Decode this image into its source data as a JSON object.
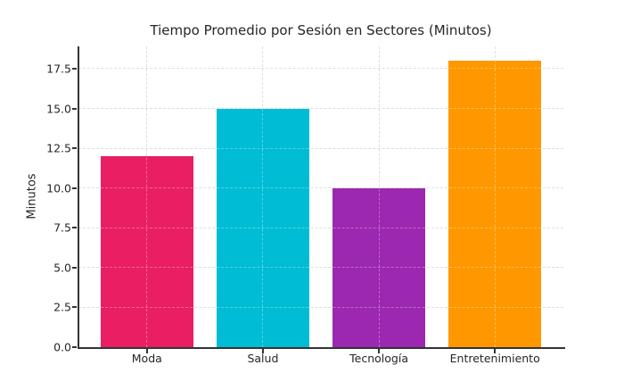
{
  "chart_data": {
    "type": "bar",
    "title": "Tiempo Promedio por Sesión en Sectores (Minutos)",
    "xlabel": "",
    "ylabel": "Minutos",
    "categories": [
      "Moda",
      "Salud",
      "Tecnología",
      "Entretenimiento"
    ],
    "values": [
      12,
      15,
      10,
      18
    ],
    "bar_colors": [
      "#e91e63",
      "#00bcd4",
      "#9c27b0",
      "#ff9800"
    ],
    "yticks": [
      0.0,
      2.5,
      5.0,
      7.5,
      10.0,
      12.5,
      15.0,
      17.5
    ],
    "ytick_labels": [
      "0.0",
      "2.5",
      "5.0",
      "7.5",
      "10.0",
      "12.5",
      "15.0",
      "17.5"
    ],
    "ylim": [
      0,
      18.9
    ],
    "grid": true,
    "grid_style": "dashed",
    "legend": false,
    "axis_color": "#333333",
    "text_color": "#262626",
    "grid_color": "#cfcfcf"
  }
}
